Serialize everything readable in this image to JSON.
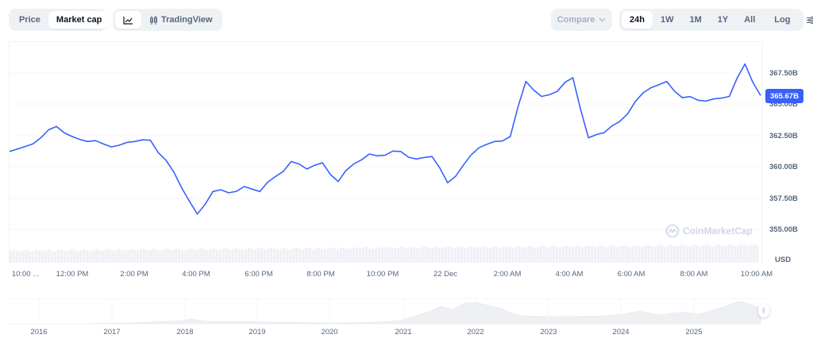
{
  "toolbar": {
    "type_tabs": [
      {
        "label": "Price",
        "active": false
      },
      {
        "label": "Market cap",
        "active": true
      }
    ],
    "view_tabs": [
      {
        "icon": "line-chart-icon",
        "label": "",
        "active": true
      },
      {
        "icon": "candlestick-icon",
        "label": "TradingView",
        "active": false
      }
    ],
    "compare_label": "Compare",
    "range_tabs": [
      {
        "label": "24h",
        "active": true
      },
      {
        "label": "1W",
        "active": false
      },
      {
        "label": "1M",
        "active": false
      },
      {
        "label": "1Y",
        "active": false
      },
      {
        "label": "All",
        "active": false
      }
    ],
    "log_label": "Log",
    "settings_icon": "sliders-icon"
  },
  "chart": {
    "current_value_tag": "365.67B",
    "currency_label": "USD",
    "watermark": "CoinMarketCap",
    "line_color": "#3861fb",
    "tag_color": "#3861fb"
  },
  "chart_data": {
    "type": "line",
    "title": "Market cap (24h)",
    "xlabel": "",
    "ylabel": "USD",
    "x_tick_labels": [
      "10:00 ...",
      "12:00 PM",
      "2:00 PM",
      "4:00 PM",
      "6:00 PM",
      "8:00 PM",
      "10:00 PM",
      "22 Dec",
      "2:00 AM",
      "4:00 AM",
      "6:00 AM",
      "8:00 AM",
      "10:00 AM"
    ],
    "y_tick_labels": [
      "367.50B",
      "365.00B",
      "362.50B",
      "360.00B",
      "357.50B",
      "355.00B"
    ],
    "ylim": [
      354.0,
      369.0
    ],
    "grid": true,
    "current_value": 365.67,
    "series": [
      {
        "name": "Market cap (B USD)",
        "x": [
          "10:00",
          "10:30",
          "11:00",
          "11:30",
          "12:00",
          "12:30",
          "13:00",
          "13:30",
          "14:00",
          "14:30",
          "15:00",
          "15:30",
          "16:00",
          "16:30",
          "17:00",
          "17:30",
          "18:00",
          "18:30",
          "19:00",
          "19:30",
          "20:00",
          "20:30",
          "21:00",
          "21:30",
          "22:00",
          "22:30",
          "23:00",
          "23:30",
          "00:00",
          "00:30",
          "01:00",
          "01:30",
          "02:00",
          "02:30",
          "03:00",
          "03:30",
          "04:00",
          "04:30",
          "05:00",
          "05:30",
          "06:00",
          "06:30",
          "07:00",
          "07:30",
          "08:00",
          "08:30",
          "09:00",
          "09:30",
          "10:00"
        ],
        "values": [
          361.2,
          361.6,
          362.3,
          363.2,
          362.4,
          362.0,
          361.8,
          361.7,
          362.0,
          362.1,
          360.5,
          358.3,
          356.2,
          358.0,
          357.9,
          358.4,
          358.0,
          359.2,
          360.4,
          359.8,
          360.3,
          358.8,
          360.2,
          361.0,
          360.9,
          361.2,
          360.6,
          360.8,
          358.7,
          360.1,
          361.5,
          362.0,
          362.4,
          366.8,
          365.6,
          366.0,
          367.1,
          362.3,
          362.7,
          363.6,
          365.2,
          366.3,
          366.8,
          365.5,
          365.3,
          365.4,
          365.6,
          368.2,
          365.67
        ]
      }
    ],
    "navigator": {
      "x_tick_labels": [
        "2016",
        "2017",
        "2018",
        "2019",
        "2020",
        "2021",
        "2022",
        "2023",
        "2024",
        "2025"
      ]
    }
  }
}
